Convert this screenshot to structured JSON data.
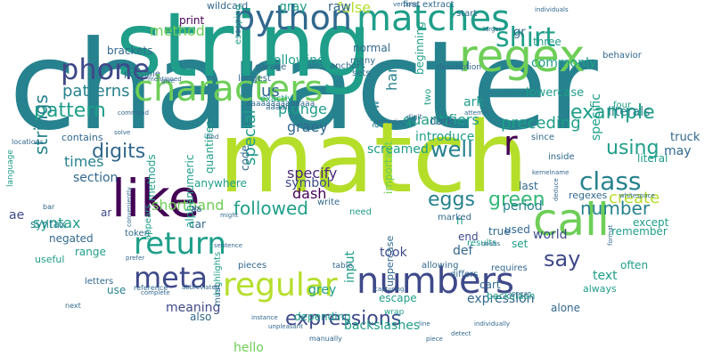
{
  "palette": {
    "dark_purple": "#440154",
    "indigo": "#482878",
    "blue": "#3e4989",
    "steel": "#31688e",
    "teal_blue": "#26828e",
    "teal": "#1f9e89",
    "green": "#35b779",
    "lime": "#6ece58",
    "yellow_green": "#b5de2b",
    "yellow": "#fde725"
  },
  "words": [
    "character",
    "match",
    "string",
    "like",
    "characters",
    "regex",
    "matches",
    "call",
    "python",
    "numbers",
    "return",
    "regular",
    "phone",
    "meta",
    "shirt",
    "class",
    "expressions",
    "pattern",
    "example",
    "well",
    "r",
    "digits",
    "strings",
    "green",
    "using",
    "number",
    "say",
    "patterns",
    "times",
    "eggs",
    "followed",
    "shorthand",
    "syntax",
    "method",
    "preceding",
    "quantifiers",
    "specify",
    "dash",
    "symbol",
    "special",
    "section",
    "create",
    "plunge",
    "graey",
    "screamed",
    "introduce",
    "false",
    "ham",
    "us",
    "following",
    "commonly",
    "lowercase",
    "literals",
    "specific",
    "truck",
    "may",
    "literal",
    "text",
    "except",
    "remember",
    "world",
    "set",
    "period",
    "took",
    "def",
    "input",
    "expression",
    "backslashes",
    "backslash",
    "uppercase",
    "escape",
    "grey",
    "cart",
    "always",
    "often",
    "alone",
    "hello",
    "depending",
    "meaning",
    "use",
    "range",
    "negated",
    "syntax",
    "ae",
    "ar",
    "car",
    "methods",
    "alphanumeric",
    "anywhere",
    "code",
    "quantifier",
    "gray",
    "raw",
    "normal",
    "wildcard",
    "print",
    "brackets",
    "three",
    "gr",
    "allow",
    "dark",
    "ark",
    "regexes",
    "end",
    "n",
    "true",
    "last",
    "results",
    "used",
    "need",
    "important",
    "contains",
    "token",
    "useful",
    "letters",
    "appears",
    "also",
    "highlights",
    "must",
    "pieces",
    "write",
    "escaping",
    "beginning",
    "two",
    "four",
    "behavior",
    "since",
    "inside",
    "first",
    "extract",
    "start",
    "description",
    "many",
    "sets",
    "anchors",
    "garage",
    "longest",
    "possible",
    "exactly",
    "aa",
    "aaaah",
    "aaaaaaaaaaaaaa",
    "allowing",
    "requires",
    "differs",
    "marked",
    "table",
    "wrap",
    "language",
    "locations",
    "bar",
    "next",
    "reference",
    "abbreviated",
    "instance",
    "sentence",
    "extracting",
    "digit",
    "attempt",
    "command",
    "solve",
    "mentioned",
    "give",
    "sh",
    "might",
    "find",
    "whitespace",
    "kernelname",
    "noahs",
    "appear",
    "deduce",
    "format",
    "verbose",
    "individuals",
    "larger",
    "capturing",
    "prefer",
    "conveniently",
    "complete",
    "piece",
    "detect",
    "unpleasant",
    "line",
    "individually",
    "manually",
    "classes"
  ]
}
